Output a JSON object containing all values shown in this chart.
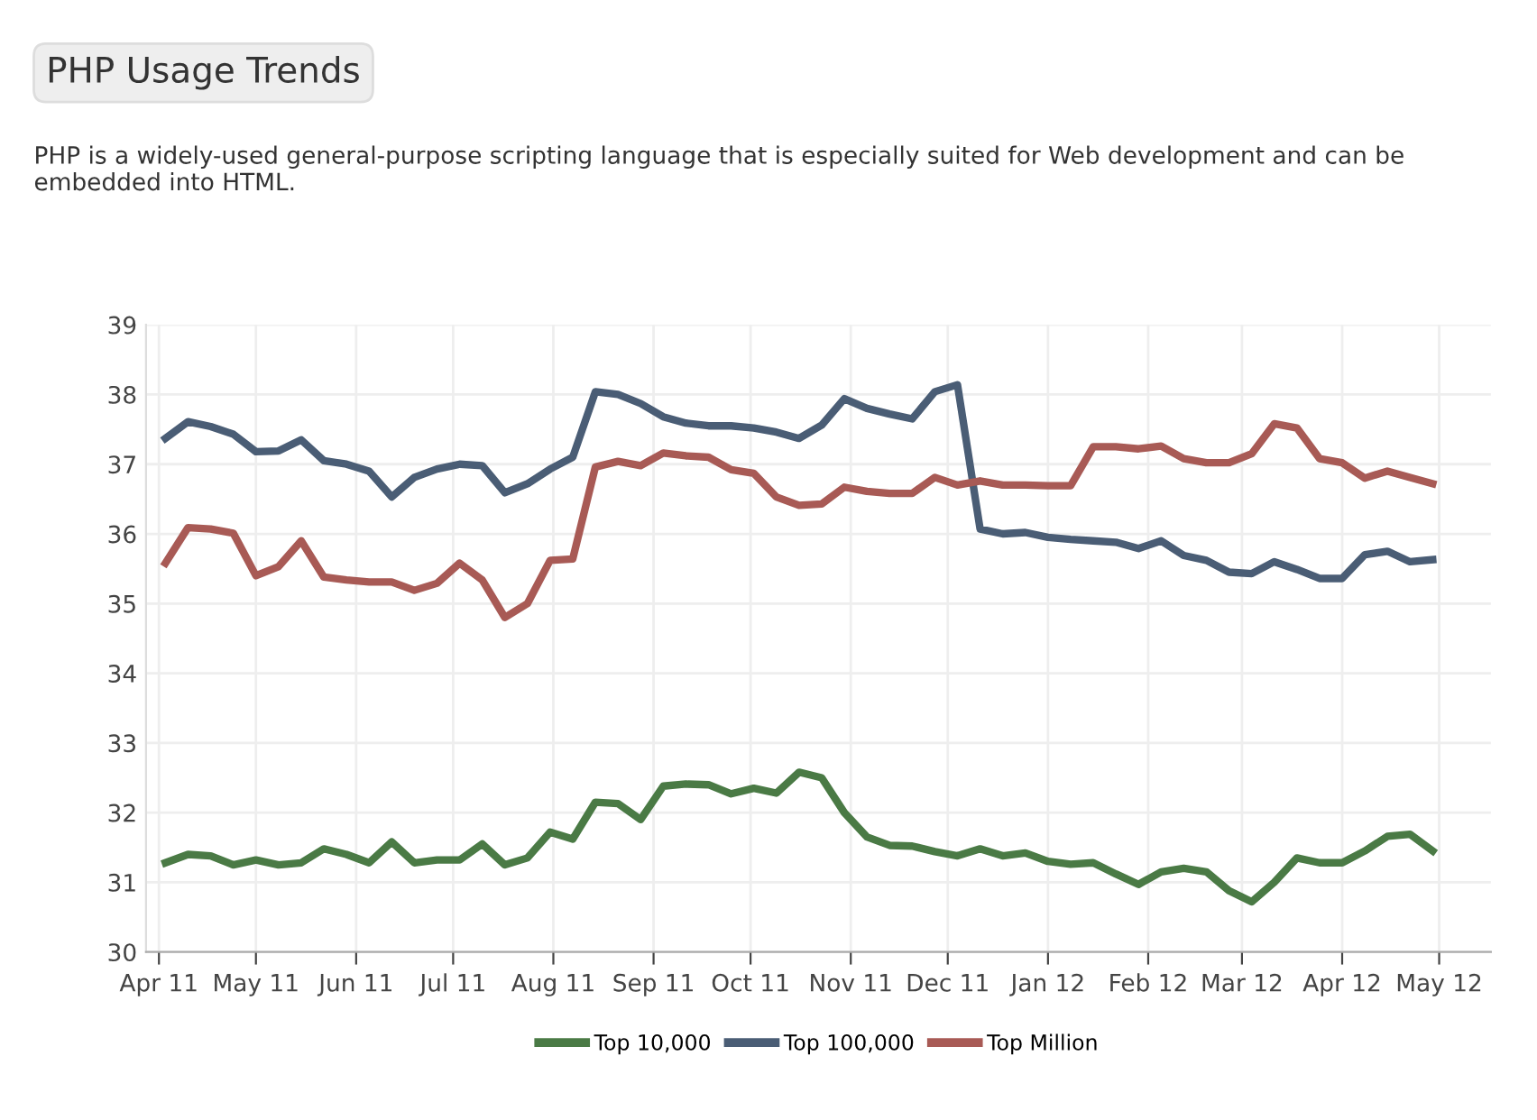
{
  "chart_data": {
    "type": "line",
    "title": "PHP Usage Trends",
    "subtitle": "PHP is a widely-used general-purpose scripting language that is especially suited for Web development and can be embedded into HTML.",
    "x": [
      "2011-04-03",
      "2011-04-10",
      "2011-04-17",
      "2011-04-24",
      "2011-05-01",
      "2011-05-08",
      "2011-05-15",
      "2011-05-22",
      "2011-05-29",
      "2011-06-05",
      "2011-06-12",
      "2011-06-19",
      "2011-06-26",
      "2011-07-03",
      "2011-07-10",
      "2011-07-17",
      "2011-07-24",
      "2011-07-31",
      "2011-08-07",
      "2011-08-14",
      "2011-08-21",
      "2011-08-28",
      "2011-09-04",
      "2011-09-11",
      "2011-09-18",
      "2011-09-25",
      "2011-10-02",
      "2011-10-09",
      "2011-10-16",
      "2011-10-23",
      "2011-10-30",
      "2011-11-06",
      "2011-11-13",
      "2011-11-20",
      "2011-11-27",
      "2011-12-04",
      "2011-12-11",
      "2011-12-18",
      "2011-12-25",
      "2012-01-01",
      "2012-01-08",
      "2012-01-15",
      "2012-01-22",
      "2012-01-29",
      "2012-02-05",
      "2012-02-12",
      "2012-02-19",
      "2012-02-26",
      "2012-03-04",
      "2012-03-11",
      "2012-03-18",
      "2012-03-25",
      "2012-04-01",
      "2012-04-08",
      "2012-04-15",
      "2012-04-22",
      "2012-04-29"
    ],
    "series": [
      {
        "name": "Top 10,000",
        "color": "#4a7a45",
        "values": [
          31.28,
          31.4,
          31.38,
          31.25,
          31.32,
          31.25,
          31.28,
          31.48,
          31.4,
          31.28,
          31.58,
          31.28,
          31.32,
          31.32,
          31.55,
          31.25,
          31.35,
          31.72,
          31.62,
          32.15,
          32.13,
          31.9,
          32.38,
          32.41,
          32.4,
          32.27,
          32.35,
          32.28,
          32.58,
          32.5,
          32.0,
          31.65,
          31.53,
          31.52,
          31.44,
          31.38,
          31.48,
          31.38,
          31.42,
          31.3,
          31.26,
          31.28,
          31.12,
          30.97,
          31.15,
          31.2,
          31.15,
          30.88,
          30.72,
          31.0,
          31.35,
          31.28,
          31.28,
          31.45,
          31.66,
          31.69,
          31.45
        ]
      },
      {
        "name": "Top 100,000",
        "color": "#4a5d75",
        "values": [
          37.37,
          37.61,
          37.54,
          37.43,
          37.18,
          37.19,
          37.35,
          37.05,
          37.0,
          36.9,
          36.53,
          36.81,
          36.93,
          37.0,
          36.98,
          36.59,
          36.72,
          36.93,
          37.1,
          38.04,
          38.0,
          37.87,
          37.68,
          37.59,
          37.55,
          37.55,
          37.52,
          37.46,
          37.37,
          37.56,
          37.94,
          37.8,
          37.72,
          37.65,
          38.04,
          38.14,
          36.07,
          36.0,
          36.02,
          35.95,
          35.92,
          35.9,
          35.88,
          35.79,
          35.9,
          35.69,
          35.62,
          35.45,
          35.43,
          35.6,
          35.49,
          35.36,
          35.36,
          35.7,
          35.75,
          35.6,
          35.63
        ]
      },
      {
        "name": "Top Million",
        "color": "#a85a55",
        "values": [
          35.58,
          36.09,
          36.07,
          36.01,
          35.4,
          35.53,
          35.9,
          35.38,
          35.34,
          35.31,
          35.31,
          35.19,
          35.29,
          35.58,
          35.34,
          34.8,
          35.0,
          35.62,
          35.64,
          36.96,
          37.04,
          36.98,
          37.16,
          37.12,
          37.1,
          36.92,
          36.87,
          36.53,
          36.41,
          36.43,
          36.67,
          36.61,
          36.58,
          36.58,
          36.81,
          36.7,
          36.76,
          36.7,
          36.7,
          36.69,
          36.69,
          37.25,
          37.25,
          37.22,
          37.26,
          37.08,
          37.02,
          37.02,
          37.15,
          37.58,
          37.52,
          37.08,
          37.02,
          36.8,
          36.9,
          36.81,
          36.72
        ]
      }
    ],
    "xlim": [
      "2011-03-28",
      "2012-05-17"
    ],
    "xticks": [
      {
        "value": "2011-04-01",
        "label": "Apr 11"
      },
      {
        "value": "2011-05-01",
        "label": "May 11"
      },
      {
        "value": "2011-06-01",
        "label": "Jun 11"
      },
      {
        "value": "2011-07-01",
        "label": "Jul 11"
      },
      {
        "value": "2011-08-01",
        "label": "Aug 11"
      },
      {
        "value": "2011-09-01",
        "label": "Sep 11"
      },
      {
        "value": "2011-10-01",
        "label": "Oct 11"
      },
      {
        "value": "2011-11-01",
        "label": "Nov 11"
      },
      {
        "value": "2011-12-01",
        "label": "Dec 11"
      },
      {
        "value": "2012-01-01",
        "label": "Jan 12"
      },
      {
        "value": "2012-02-01",
        "label": "Feb 12"
      },
      {
        "value": "2012-03-01",
        "label": "Mar 12"
      },
      {
        "value": "2012-04-01",
        "label": "Apr 12"
      },
      {
        "value": "2012-05-01",
        "label": "May 12"
      }
    ],
    "ylim": [
      30,
      39
    ],
    "yticks": [
      30,
      31,
      32,
      33,
      34,
      35,
      36,
      37,
      38,
      39
    ],
    "grid": true,
    "legend": "bottom",
    "marker": "none",
    "line_style": "solid"
  }
}
